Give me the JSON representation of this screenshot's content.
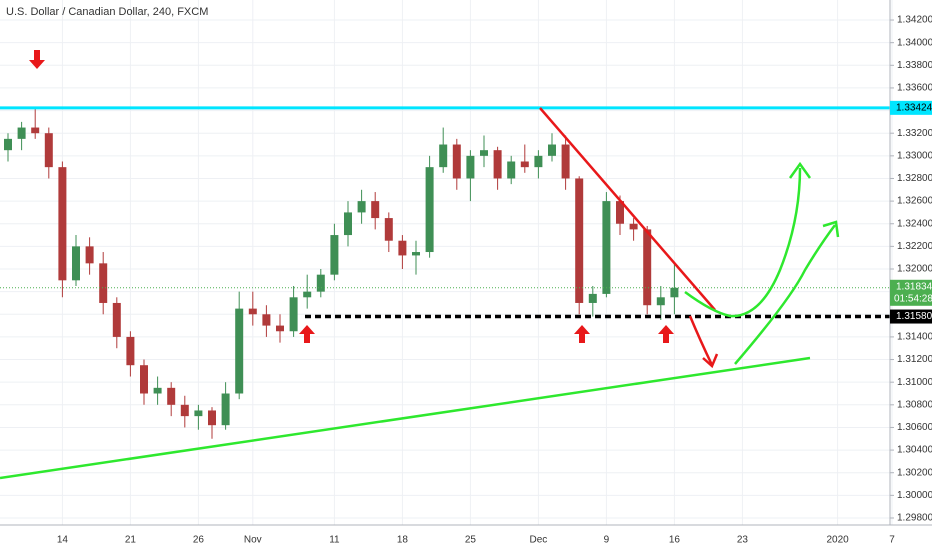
{
  "chart_data": {
    "type": "candlestick",
    "title": "U.S. Dollar / Canadian Dollar, 240, FXCM",
    "categories": [
      null,
      null,
      null,
      null,
      "14",
      null,
      null,
      null,
      null,
      "21",
      null,
      null,
      null,
      null,
      "26",
      null,
      null,
      null,
      "Nov",
      null,
      null,
      null,
      null,
      null,
      "11",
      null,
      null,
      null,
      null,
      "18",
      null,
      null,
      null,
      null,
      "25",
      null,
      null,
      null,
      null,
      "Dec",
      null,
      null,
      null,
      null,
      "9",
      null,
      null,
      null,
      null,
      "16",
      null,
      null,
      null,
      null,
      "23",
      null,
      null,
      null,
      null,
      null,
      null,
      "2020",
      null,
      null,
      null,
      "7"
    ],
    "open": [
      1.3305,
      1.3315,
      1.3325,
      1.332,
      1.329,
      1.319,
      1.322,
      1.3205,
      1.317,
      1.314,
      1.3115,
      1.309,
      1.3095,
      1.308,
      1.307,
      1.3075,
      1.3062,
      1.309,
      1.3165,
      1.316,
      1.315,
      1.3145,
      1.3175,
      1.318,
      1.3195,
      1.323,
      1.325,
      1.326,
      1.3245,
      1.3225,
      1.3212,
      1.3215,
      1.329,
      1.331,
      1.328,
      1.33,
      1.3305,
      1.328,
      1.3295,
      1.329,
      1.33,
      1.331,
      1.328,
      1.317,
      1.3178,
      1.326,
      1.324,
      1.3235,
      1.3168,
      1.3175,
      null,
      null,
      null,
      null,
      null,
      null,
      null,
      null,
      null,
      null,
      null,
      null,
      null,
      null,
      null,
      null
    ],
    "high": [
      1.332,
      1.333,
      1.3343,
      1.3325,
      1.3295,
      1.323,
      1.3228,
      1.3215,
      1.3175,
      1.3145,
      1.312,
      1.3105,
      1.31,
      1.3088,
      1.308,
      1.3078,
      1.31,
      1.318,
      1.318,
      1.3168,
      1.316,
      1.3185,
      1.3195,
      1.32,
      1.324,
      1.326,
      1.327,
      1.3268,
      1.325,
      1.323,
      1.3225,
      1.33,
      1.3325,
      1.3315,
      1.3305,
      1.3318,
      1.3308,
      1.33,
      1.331,
      1.3305,
      1.332,
      1.3318,
      1.3282,
      1.3185,
      1.3268,
      1.3265,
      1.3245,
      1.3238,
      1.3185,
      1.3205,
      null,
      null,
      null,
      null,
      null,
      null,
      null,
      null,
      null,
      null,
      null,
      null,
      null,
      null,
      null,
      null
    ],
    "low": [
      1.3295,
      1.3305,
      1.3315,
      1.328,
      1.3175,
      1.3185,
      1.3195,
      1.316,
      1.313,
      1.3105,
      1.308,
      1.308,
      1.307,
      1.306,
      1.3058,
      1.305,
      1.3058,
      1.3085,
      1.315,
      1.314,
      1.3135,
      1.314,
      1.3165,
      1.3175,
      1.319,
      1.322,
      1.324,
      1.3235,
      1.3215,
      1.32,
      1.3195,
      1.321,
      1.3285,
      1.327,
      1.326,
      1.329,
      1.327,
      1.3275,
      1.3285,
      1.328,
      1.3295,
      1.327,
      1.316,
      1.3158,
      1.3175,
      1.323,
      1.3225,
      1.316,
      1.3155,
      1.316,
      null,
      null,
      null,
      null,
      null,
      null,
      null,
      null,
      null,
      null,
      null,
      null,
      null,
      null,
      null,
      null
    ],
    "close": [
      1.3315,
      1.3325,
      1.332,
      1.329,
      1.319,
      1.322,
      1.3205,
      1.317,
      1.314,
      1.3115,
      1.309,
      1.3095,
      1.308,
      1.307,
      1.3075,
      1.3062,
      1.309,
      1.3165,
      1.316,
      1.315,
      1.3145,
      1.3175,
      1.318,
      1.3195,
      1.323,
      1.325,
      1.326,
      1.3245,
      1.3225,
      1.3212,
      1.3215,
      1.329,
      1.331,
      1.328,
      1.33,
      1.3305,
      1.328,
      1.3295,
      1.329,
      1.33,
      1.331,
      1.328,
      1.317,
      1.3178,
      1.326,
      1.324,
      1.3235,
      1.3168,
      1.3175,
      1.31834,
      null,
      null,
      null,
      null,
      null,
      null,
      null,
      null,
      null,
      null,
      null,
      null,
      null,
      null,
      null,
      null
    ],
    "up_color": "#3f8f55",
    "down_color": "#b03a3a",
    "ylim": [
      1.29738,
      1.34377
    ],
    "yticks": [
      {
        "value": 1.298,
        "label": "1.29800"
      },
      {
        "value": 1.3,
        "label": "1.30000"
      },
      {
        "value": 1.302,
        "label": "1.30200"
      },
      {
        "value": 1.304,
        "label": "1.30400"
      },
      {
        "value": 1.306,
        "label": "1.30600"
      },
      {
        "value": 1.308,
        "label": "1.30800"
      },
      {
        "value": 1.31,
        "label": "1.31000"
      },
      {
        "value": 1.312,
        "label": "1.31200"
      },
      {
        "value": 1.314,
        "label": "1.31400"
      },
      {
        "value": 1.316,
        "label": "1.31600"
      },
      {
        "value": 1.318,
        "label": "1.31800"
      },
      {
        "value": 1.32,
        "label": "1.32000"
      },
      {
        "value": 1.322,
        "label": "1.32200"
      },
      {
        "value": 1.324,
        "label": "1.32400"
      },
      {
        "value": 1.326,
        "label": "1.32600"
      },
      {
        "value": 1.328,
        "label": "1.32800"
      },
      {
        "value": 1.33,
        "label": "1.33000"
      },
      {
        "value": 1.332,
        "label": "1.33200"
      },
      {
        "value": 1.334,
        "label": "1.33400"
      },
      {
        "value": 1.336,
        "label": "1.33600"
      },
      {
        "value": 1.338,
        "label": "1.33800"
      },
      {
        "value": 1.34,
        "label": "1.34000"
      },
      {
        "value": 1.342,
        "label": "1.34200"
      }
    ],
    "grid": true,
    "levels": [
      {
        "value": 1.33424,
        "color": "#00e5ff"
      },
      {
        "value": {
          "value": 1.3158,
          "label": "1.31580"
        },
        "color": "#000000",
        "dashed": true
      }
    ],
    "last_price": 1.31834,
    "last_price_color": "#4caf50",
    "countdown": "01:54:28"
  }
}
